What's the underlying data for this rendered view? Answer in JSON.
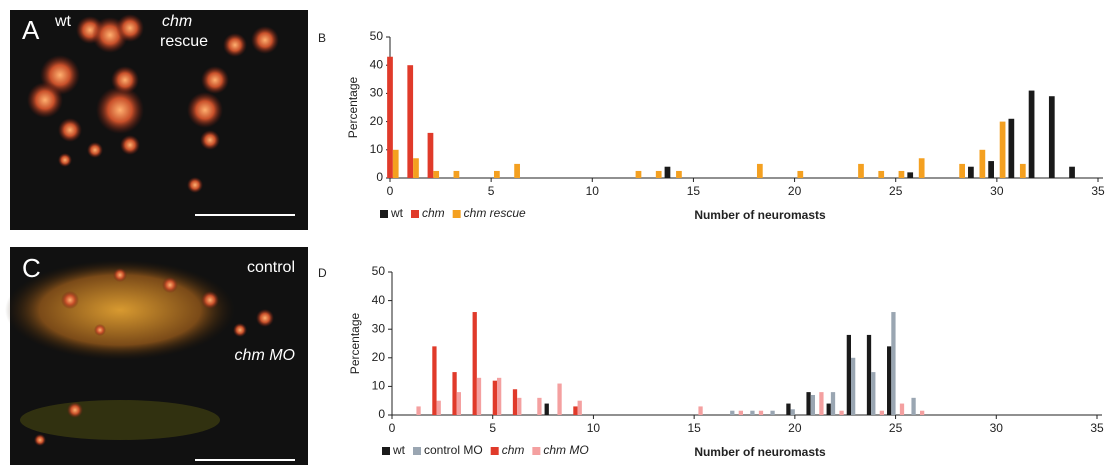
{
  "panels": [
    {
      "letter": "A",
      "labels": [
        "wt",
        "chm",
        "rescue"
      ]
    },
    {
      "letter": "C",
      "labels": [
        "control",
        "chm MO"
      ]
    }
  ],
  "chart_data": [
    {
      "type": "bar",
      "label": "B",
      "ylabel": "Percentage",
      "xlabel": "Number of neuromasts",
      "x": [
        0,
        1,
        2,
        3,
        5,
        6,
        12,
        13,
        14,
        18,
        20,
        23,
        24,
        25,
        26,
        28,
        29,
        30,
        31,
        32,
        33,
        34
      ],
      "series": [
        {
          "name": "wt",
          "color": "#1a1a1a",
          "values": [
            0,
            0,
            0,
            0,
            0,
            0,
            0,
            0,
            4,
            0,
            0,
            0,
            0,
            0,
            2,
            0,
            4,
            6,
            21,
            31,
            29,
            4
          ]
        },
        {
          "name": "chm",
          "color": "#e03a2a",
          "values": [
            43,
            40,
            16,
            0,
            0,
            0,
            0,
            0,
            0,
            0,
            0,
            0,
            0,
            0,
            0,
            0,
            0,
            0,
            0,
            0,
            0,
            0
          ]
        },
        {
          "name": "chm rescue",
          "color": "#f4a020",
          "values": [
            10,
            7,
            2.5,
            2.5,
            2.5,
            5,
            2.5,
            2.5,
            2.5,
            5,
            2.5,
            5,
            2.5,
            2.5,
            7,
            5,
            10,
            20,
            5,
            0,
            0,
            0
          ]
        }
      ],
      "xlim": [
        0,
        35
      ],
      "ylim": [
        0,
        50
      ],
      "xticks": [
        0,
        5,
        10,
        15,
        20,
        25,
        30,
        35
      ],
      "yticks": [
        0,
        10,
        20,
        30,
        40,
        50
      ]
    },
    {
      "type": "bar",
      "label": "D",
      "ylabel": "Percentage",
      "xlabel": "Number of neuromasts",
      "x": [
        1,
        2,
        3,
        4,
        5,
        6,
        7,
        8,
        9,
        15,
        17,
        18,
        19,
        20,
        21,
        22,
        23,
        24,
        25,
        26
      ],
      "series": [
        {
          "name": "wt",
          "color": "#1a1a1a",
          "values": [
            0,
            0,
            0,
            0,
            0,
            0,
            0,
            4,
            0,
            0,
            0,
            0,
            0,
            4,
            8,
            4,
            28,
            28,
            24,
            0
          ]
        },
        {
          "name": "control MO",
          "color": "#9aa6b2",
          "values": [
            0,
            0,
            0,
            0,
            0,
            0,
            0,
            0,
            0,
            0,
            1.5,
            1.5,
            1.5,
            2,
            7,
            8,
            20,
            15,
            36,
            6
          ]
        },
        {
          "name": "chm",
          "color": "#e03a2a",
          "values": [
            0,
            24,
            15,
            36,
            12,
            9,
            0,
            0,
            3,
            0,
            0,
            0,
            0,
            0,
            0,
            0,
            0,
            0,
            0,
            0
          ]
        },
        {
          "name": "chm MO",
          "color": "#f4a0a0",
          "values": [
            3,
            5,
            8,
            13,
            13,
            6,
            6,
            11,
            5,
            3,
            1.5,
            1.5,
            0,
            0,
            8,
            1.5,
            0,
            1.5,
            4,
            1.5
          ]
        }
      ],
      "xlim": [
        0,
        35
      ],
      "ylim": [
        0,
        50
      ],
      "xticks": [
        0,
        5,
        10,
        15,
        20,
        25,
        30,
        35
      ],
      "yticks": [
        0,
        10,
        20,
        30,
        40,
        50
      ]
    }
  ]
}
